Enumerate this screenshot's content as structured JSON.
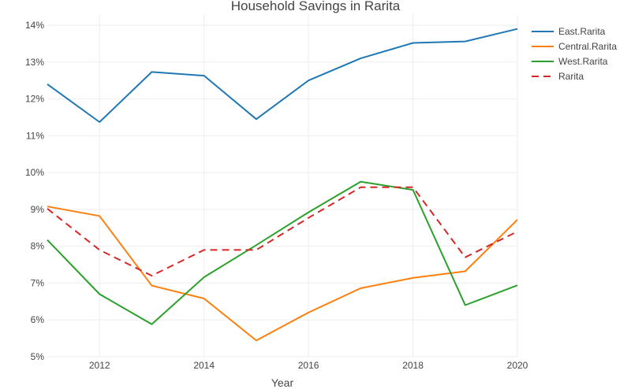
{
  "chart_data": {
    "type": "line",
    "title": "Household Savings in Rarita",
    "xlabel": "Year",
    "ylabel": "",
    "x": [
      2011,
      2012,
      2013,
      2014,
      2015,
      2016,
      2017,
      2018,
      2019,
      2020
    ],
    "xlim": [
      2011,
      2020
    ],
    "ylim": [
      5,
      14.3
    ],
    "x_ticks": [
      2012,
      2014,
      2016,
      2018,
      2020
    ],
    "y_ticks": [
      5,
      6,
      7,
      8,
      9,
      10,
      11,
      12,
      13,
      14
    ],
    "y_tick_suffix": "%",
    "grid": true,
    "legend_position": "top-right",
    "series": [
      {
        "name": "East.Rarita",
        "color": "#1f77b4",
        "dash": "solid",
        "values": [
          12.4,
          11.37,
          12.73,
          12.63,
          11.45,
          12.5,
          13.1,
          13.52,
          13.56,
          13.9
        ]
      },
      {
        "name": "Central.Rarita",
        "color": "#ff7f0e",
        "dash": "solid",
        "values": [
          9.08,
          8.82,
          6.93,
          6.58,
          5.44,
          6.2,
          6.86,
          7.14,
          7.32,
          8.72
        ]
      },
      {
        "name": "West.Rarita",
        "color": "#2ca02c",
        "dash": "solid",
        "values": [
          8.17,
          6.7,
          5.88,
          7.16,
          8.03,
          8.92,
          9.75,
          9.53,
          6.4,
          6.94
        ]
      },
      {
        "name": "Rarita",
        "color": "#d62728",
        "dash": "dashed",
        "values": [
          9.02,
          7.9,
          7.2,
          7.9,
          7.9,
          8.77,
          9.6,
          9.6,
          7.7,
          8.4
        ]
      }
    ]
  }
}
